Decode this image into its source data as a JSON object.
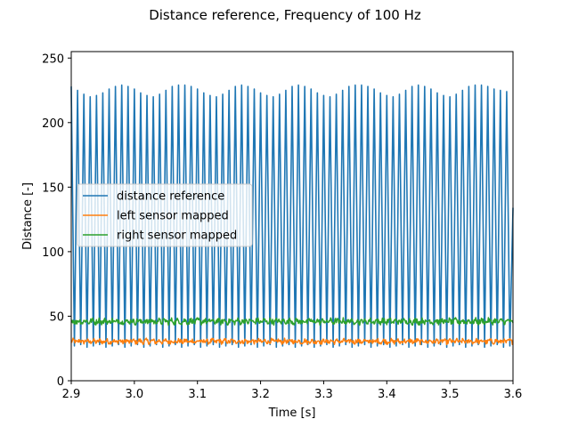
{
  "chart_data": {
    "type": "line",
    "title": "Distance reference, Frequency of 100 Hz",
    "xlabel": "Time [s]",
    "ylabel": "Distance [-]",
    "xlim": [
      2.9,
      3.6
    ],
    "ylim": [
      0,
      255
    ],
    "xticks": [
      "2.9",
      "3.0",
      "3.1",
      "3.2",
      "3.3",
      "3.4",
      "3.5",
      "3.6"
    ],
    "yticks": [
      "0",
      "50",
      "100",
      "150",
      "200",
      "250"
    ],
    "grid": false,
    "legend_position": "center-left",
    "sample_rate_hz": 1000,
    "series": [
      {
        "name": "distance reference",
        "color": "#1f77b4",
        "oscillation_frequency_hz": 100,
        "peak_values": [
          228,
          225,
          222,
          220,
          221,
          223,
          226,
          228,
          229,
          228,
          226,
          223,
          221,
          220,
          222,
          225,
          228,
          229,
          229,
          228,
          226,
          223,
          221,
          220,
          222,
          225,
          228,
          229,
          228,
          226,
          223,
          221,
          220,
          222,
          225,
          228,
          229,
          228,
          226,
          223,
          221,
          220,
          222,
          225,
          228,
          229,
          229,
          228,
          226,
          223,
          221,
          220,
          222,
          225,
          228,
          229,
          228,
          226,
          223,
          221,
          220,
          222,
          225,
          228,
          229,
          229,
          228,
          226,
          225,
          224
        ],
        "trough_values": [
          27,
          28,
          26,
          27,
          28,
          26,
          27,
          28,
          26,
          27,
          28,
          26,
          27,
          28,
          26,
          27,
          28,
          26,
          27,
          28,
          26,
          27,
          28,
          26,
          27,
          28,
          26,
          27,
          28,
          26,
          27,
          28,
          26,
          27,
          28,
          26,
          27,
          28,
          26,
          27,
          28,
          26,
          27,
          28,
          26,
          27,
          28,
          26,
          27,
          28,
          26,
          27,
          28,
          26,
          27,
          28,
          26,
          27,
          28,
          26,
          27,
          28,
          26,
          27,
          28,
          26,
          27,
          28,
          26,
          27
        ],
        "end_value": 134
      },
      {
        "name": "left sensor mapped",
        "color": "#ff7f0e",
        "mean": 30.5,
        "noise_amplitude": 2.5
      },
      {
        "name": "right sensor mapped",
        "color": "#2ca02c",
        "mean": 46,
        "noise_amplitude": 3
      }
    ]
  }
}
